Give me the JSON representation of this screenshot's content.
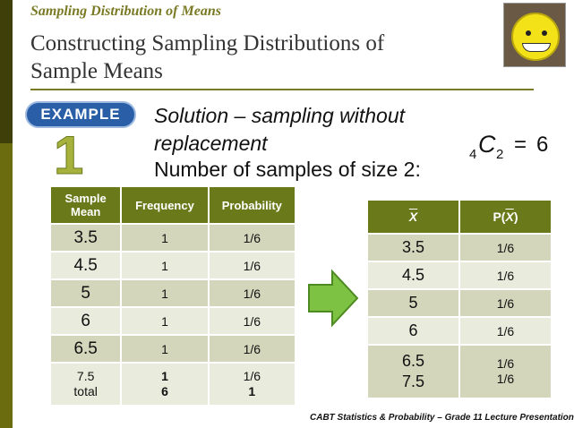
{
  "slide": {
    "kicker": "Sampling Distribution of Means",
    "title_line1": "Constructing Sampling Distributions of",
    "title_line2": "Sample Means",
    "badge": "EXAMPLE",
    "example_number": "1",
    "solution_line1": "Solution – sampling without",
    "solution_line2": "replacement",
    "solution_line3": "Number of samples of size 2:",
    "combination": {
      "n": "4",
      "symbol": "C",
      "r": "2",
      "equals": "=",
      "value": "6"
    },
    "footer": "CABT Statistics & Probability – Grade 11 Lecture Presentation"
  },
  "table_left": {
    "headers": [
      "Sample Mean",
      "Frequency",
      "Probability"
    ],
    "rows": [
      {
        "mean": "3.5",
        "frequency": "1",
        "probability": "1/6"
      },
      {
        "mean": "4.5",
        "frequency": "1",
        "probability": "1/6"
      },
      {
        "mean": "5",
        "frequency": "1",
        "probability": "1/6"
      },
      {
        "mean": "6",
        "frequency": "1",
        "probability": "1/6"
      },
      {
        "mean": "6.5",
        "frequency": "1",
        "probability": "1/6"
      },
      {
        "mean": "7.5",
        "frequency": "1",
        "probability": "1/6"
      }
    ],
    "total": {
      "label": "total",
      "frequency": "6",
      "probability": "1"
    }
  },
  "table_right": {
    "header_x": "X",
    "header_p_prefix": "P(",
    "header_p_var": "X",
    "header_p_suffix": ")",
    "rows": [
      {
        "x": "3.5",
        "p": "1/6"
      },
      {
        "x": "4.5",
        "p": "1/6"
      },
      {
        "x": "5",
        "p": "1/6"
      },
      {
        "x": "6",
        "p": "1/6"
      },
      {
        "x": "6.5",
        "p": "1/6"
      },
      {
        "x": "7.5",
        "p": "1/6"
      }
    ]
  },
  "colors": {
    "accent": "#6a7a1a",
    "row_dark": "#d3d6bb",
    "row_light": "#e9ebdd",
    "badge": "#2a5fa8",
    "arrow": "#7dc242"
  },
  "icons": {
    "arrow": "right-arrow-icon",
    "avatar": "smiley-avatar-icon"
  }
}
